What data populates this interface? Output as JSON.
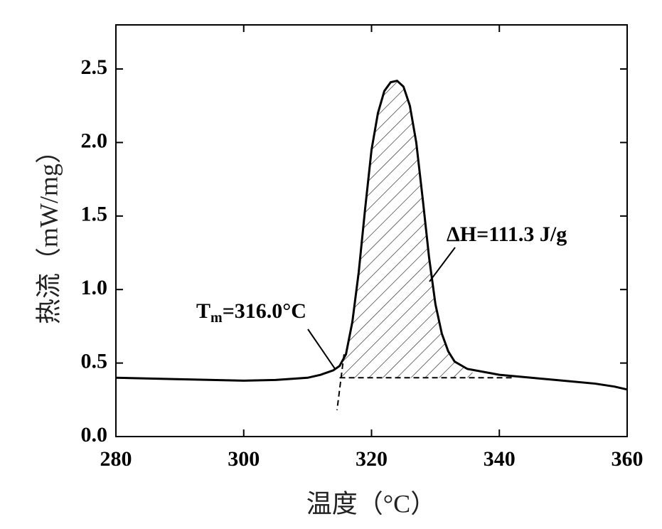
{
  "chart_data": {
    "type": "line",
    "xlabel": "温度（°C）",
    "ylabel": "热流（mW/mg）",
    "x": [
      280,
      290,
      300,
      305,
      310,
      312,
      314,
      315,
      316,
      317,
      318,
      319,
      320,
      321,
      322,
      323,
      324,
      325,
      326,
      327,
      328,
      329,
      330,
      331,
      332,
      333,
      335,
      340,
      345,
      350,
      355,
      358,
      360
    ],
    "series": [
      {
        "color": "#000000",
        "values": [
          0.4,
          0.39,
          0.38,
          0.385,
          0.4,
          0.42,
          0.45,
          0.48,
          0.56,
          0.78,
          1.12,
          1.55,
          1.95,
          2.2,
          2.35,
          2.41,
          2.42,
          2.38,
          2.25,
          2.0,
          1.62,
          1.22,
          0.9,
          0.7,
          0.58,
          0.51,
          0.46,
          0.42,
          0.4,
          0.38,
          0.36,
          0.34,
          0.32
        ]
      }
    ],
    "baseline": {
      "x": [
        315,
        342
      ],
      "y": 0.4
    },
    "onset_tangent": {
      "x": [
        315.7,
        314.6
      ],
      "y": [
        0.56,
        0.18
      ]
    },
    "hatch_range": [
      315,
      337
    ],
    "onset_label": {
      "symbol": "T",
      "subscript": "m",
      "value": "=316.0°C"
    },
    "enthalpy_label": "ΔH=111.3 J/g",
    "xlim": [
      280,
      360
    ],
    "xticks": [
      280,
      300,
      320,
      340,
      360
    ],
    "ylim": [
      0,
      2.8
    ],
    "yticks": [
      {
        "value": 0,
        "label": "0.0"
      },
      0.5,
      {
        "value": 1,
        "label": "1.0"
      },
      1.5,
      {
        "value": 2,
        "label": "2.0"
      },
      2.5
    ]
  }
}
